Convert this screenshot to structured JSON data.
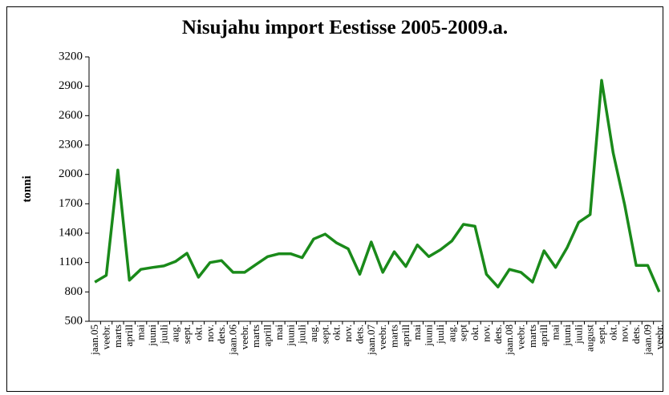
{
  "chart_data": {
    "type": "line",
    "title": "Nisujahu import Eestisse 2005-2009.a.",
    "y_label": "tonni",
    "categories": [
      "jaan.05",
      "veebr.",
      "marts",
      "aprill",
      "mai",
      "juuni",
      "juuli",
      "aug.",
      "sept.",
      "okt.",
      "nov.",
      "dets.",
      "jaan.06",
      "veebr.",
      "marts",
      "aprill",
      "mai",
      "juuni",
      "juuli",
      "aug.",
      "sept.",
      "okt.",
      "nov.",
      "dets.",
      "jaan.07",
      "veebr.",
      "marts",
      "aprill",
      "mai",
      "juuni",
      "juuli",
      "aug.",
      "sept",
      "okt.",
      "nov.",
      "dets.",
      "jaan.08",
      "veebr.",
      "marts",
      "aprill",
      "mai",
      "juuni",
      "juuli",
      "august",
      "sept.",
      "okt.",
      "nov.",
      "dets.",
      "jaan.09",
      "veebr."
    ],
    "values": [
      900,
      970,
      2045,
      920,
      1030,
      1050,
      1065,
      1110,
      1195,
      950,
      1100,
      1120,
      1000,
      1000,
      1080,
      1160,
      1190,
      1190,
      1150,
      1340,
      1390,
      1300,
      1240,
      980,
      1310,
      1000,
      1210,
      1060,
      1280,
      1160,
      1230,
      1320,
      1490,
      1470,
      980,
      850,
      1030,
      1000,
      900,
      1220,
      1050,
      1250,
      1510,
      1590,
      2960,
      2220,
      1690,
      1070,
      1070,
      800
    ],
    "color": "#1a8a1a",
    "ylim": [
      500,
      3200
    ],
    "yticks": [
      500,
      800,
      1100,
      1400,
      1700,
      2000,
      2300,
      2600,
      2900,
      3200
    ]
  }
}
